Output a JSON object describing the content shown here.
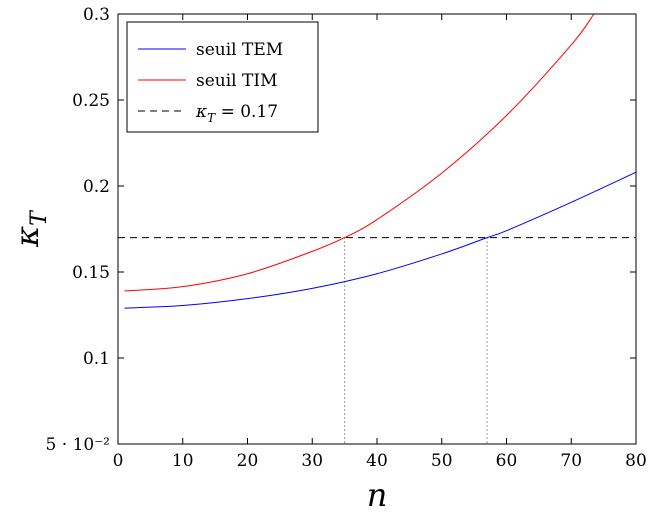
{
  "chart_data": {
    "type": "line",
    "xlabel": "n",
    "ylabel": "κ",
    "ylabel_sub": "T",
    "xlim": [
      0,
      80
    ],
    "ylim": [
      0.05,
      0.3
    ],
    "grid": false,
    "legend_position": "top-left",
    "x_ticks": [
      0,
      10,
      20,
      30,
      40,
      50,
      60,
      70,
      80
    ],
    "x_tick_labels": [
      "0",
      "10",
      "20",
      "30",
      "40",
      "50",
      "60",
      "70",
      "80"
    ],
    "y_ticks": [
      0.05,
      0.1,
      0.15,
      0.2,
      0.25,
      0.3
    ],
    "y_tick_labels": [
      "5 · 10⁻²",
      "0.1",
      "0.15",
      "0.2",
      "0.25",
      "0.3"
    ],
    "series": [
      {
        "name": "seuil TEM",
        "color": "#0000ff",
        "style": "solid",
        "x": [
          1,
          10,
          20,
          30,
          40,
          50,
          57,
          60,
          70,
          80
        ],
        "y": [
          0.129,
          0.1305,
          0.1345,
          0.1405,
          0.149,
          0.1605,
          0.17,
          0.174,
          0.1905,
          0.208
        ]
      },
      {
        "name": "seuil TIM",
        "color": "#ff0000",
        "style": "solid",
        "x": [
          1,
          10,
          20,
          30,
          35,
          40,
          50,
          60,
          70,
          73.5
        ],
        "y": [
          0.139,
          0.1415,
          0.149,
          0.162,
          0.17,
          0.1805,
          0.2075,
          0.241,
          0.282,
          0.3
        ]
      },
      {
        "name": "κ_T = 0.17",
        "color": "#000000",
        "style": "dashed",
        "x": [
          0,
          80
        ],
        "y": [
          0.17,
          0.17
        ]
      }
    ],
    "annotations": [
      {
        "x": 35,
        "y": 0.17,
        "style": "dotted-vertical"
      },
      {
        "x": 57,
        "y": 0.17,
        "style": "dotted-vertical"
      }
    ],
    "legend_entries": {
      "tem": "seuil TEM",
      "tim": "seuil TIM",
      "threshold_symbol": "κ",
      "threshold_sub": "T",
      "threshold_value": " = 0.17"
    }
  }
}
